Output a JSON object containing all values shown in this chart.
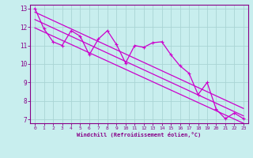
{
  "xlabel": "Windchill (Refroidissement éolien,°C)",
  "bg_color": "#c8eeee",
  "line_color": "#cc00cc",
  "grid_color": "#aad4d4",
  "axis_color": "#880088",
  "tick_color": "#880088",
  "xlim": [
    -0.5,
    23.5
  ],
  "ylim": [
    6.8,
    13.2
  ],
  "xticks": [
    0,
    1,
    2,
    3,
    4,
    5,
    6,
    7,
    8,
    9,
    10,
    11,
    12,
    13,
    14,
    15,
    16,
    17,
    18,
    19,
    20,
    21,
    22,
    23
  ],
  "yticks": [
    7,
    8,
    9,
    10,
    11,
    12,
    13
  ],
  "data_y": [
    13.0,
    11.9,
    11.2,
    11.0,
    11.8,
    11.5,
    10.5,
    11.35,
    11.8,
    11.05,
    10.05,
    11.0,
    10.9,
    11.15,
    11.2,
    10.5,
    9.9,
    9.5,
    8.35,
    9.0,
    7.55,
    7.05,
    7.35,
    7.05
  ],
  "upper_line": [
    12.8,
    7.6
  ],
  "lower_line": [
    11.95,
    6.8
  ],
  "mid_line": [
    12.4,
    7.2
  ],
  "upper_line_x": [
    0,
    23
  ],
  "lower_line_x": [
    0,
    23
  ],
  "mid_line_x": [
    0,
    23
  ],
  "linewidth": 0.9,
  "marker_size": 2.5
}
